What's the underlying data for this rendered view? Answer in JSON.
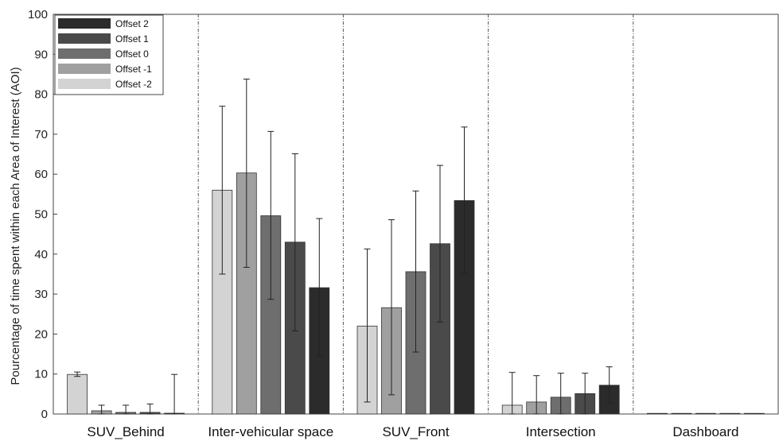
{
  "chart_data": {
    "type": "bar",
    "title": "",
    "xlabel": "",
    "ylabel": "Pourcentage of time spent within each Area of Interest (AOI)",
    "ylim": [
      0,
      100
    ],
    "yticks": [
      0,
      10,
      20,
      30,
      40,
      50,
      60,
      70,
      80,
      90,
      100
    ],
    "categories": [
      "SUV_Behind",
      "Inter-vehicular space",
      "SUV_Front",
      "Intersection",
      "Dashboard"
    ],
    "series": [
      {
        "name": "Offset -2",
        "color": "#d3d3d3",
        "values": [
          9.9,
          56.0,
          22.0,
          2.2,
          0.0
        ],
        "err_low": [
          9.4,
          35.0,
          3.0,
          0.0,
          0.0
        ],
        "err_high": [
          10.5,
          77.0,
          41.3,
          10.4,
          0.0
        ]
      },
      {
        "name": "Offset -1",
        "color": "#a0a0a0",
        "values": [
          0.8,
          60.3,
          26.6,
          3.0,
          0.0
        ],
        "err_low": [
          0.0,
          36.7,
          4.8,
          0.0,
          0.0
        ],
        "err_high": [
          2.2,
          83.8,
          48.6,
          9.6,
          0.0
        ]
      },
      {
        "name": "Offset 0",
        "color": "#6e6e6e",
        "values": [
          0.4,
          49.6,
          35.6,
          4.2,
          0.0
        ],
        "err_low": [
          0.0,
          28.7,
          15.5,
          0.0,
          0.0
        ],
        "err_high": [
          2.2,
          70.7,
          55.8,
          10.2,
          0.0
        ]
      },
      {
        "name": "Offset 1",
        "color": "#4a4a4a",
        "values": [
          0.4,
          43.0,
          42.6,
          5.1,
          0.0
        ],
        "err_low": [
          0.0,
          20.8,
          23.0,
          0.0,
          0.0
        ],
        "err_high": [
          2.5,
          65.1,
          62.2,
          10.2,
          0.0
        ]
      },
      {
        "name": "Offset 2",
        "color": "#2b2b2b",
        "values": [
          0.2,
          31.6,
          53.4,
          7.2,
          0.0
        ],
        "err_low": [
          0.0,
          14.5,
          35.1,
          2.7,
          0.0
        ],
        "err_high": [
          9.9,
          48.9,
          71.8,
          11.8,
          0.0
        ]
      }
    ],
    "legend_order": [
      "Offset 2",
      "Offset 1",
      "Offset 0",
      "Offset -1",
      "Offset -2"
    ],
    "legend_position": "top-left",
    "grid": false,
    "category_separators": "dash-dot"
  }
}
